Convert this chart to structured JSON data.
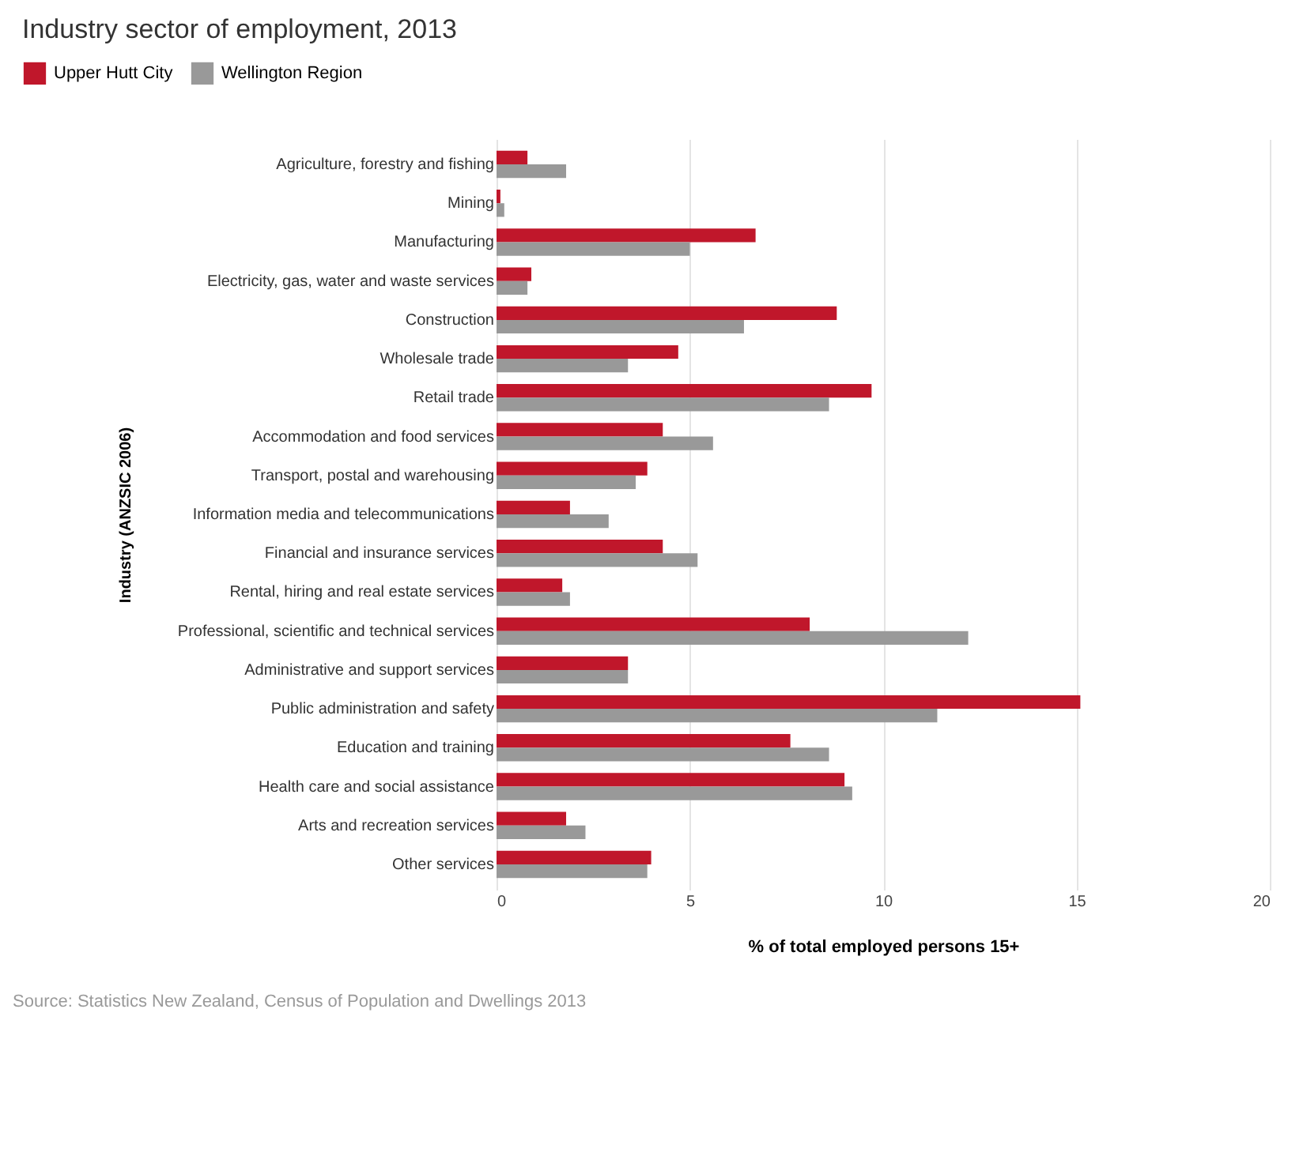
{
  "chart_data": {
    "type": "bar",
    "orientation": "horizontal",
    "title": "Industry sector of employment, 2013",
    "xlabel": "% of total employed persons 15+",
    "ylabel": "Industry (ANZSIC 2006)",
    "categories": [
      "Agriculture, forestry and fishing",
      "Mining",
      "Manufacturing",
      "Electricity, gas, water and waste services",
      "Construction",
      "Wholesale trade",
      "Retail trade",
      "Accommodation and food services",
      "Transport, postal and warehousing",
      "Information media and telecommunications",
      "Financial and insurance services",
      "Rental, hiring and real estate services",
      "Professional, scientific and technical services",
      "Administrative and support services",
      "Public administration and safety",
      "Education and training",
      "Health care and social assistance",
      "Arts and recreation services",
      "Other services"
    ],
    "series": [
      {
        "name": "Upper Hutt City",
        "color": "#c0172b",
        "values": [
          0.8,
          0.1,
          6.7,
          0.9,
          8.8,
          4.7,
          9.7,
          4.3,
          3.9,
          1.9,
          4.3,
          1.7,
          8.1,
          3.4,
          15.1,
          7.6,
          9.0,
          1.8,
          4.0
        ]
      },
      {
        "name": "Wellington Region",
        "color": "#999999",
        "values": [
          1.8,
          0.2,
          5.0,
          0.8,
          6.4,
          3.4,
          8.6,
          5.6,
          3.6,
          2.9,
          5.2,
          1.9,
          12.2,
          3.4,
          11.4,
          8.6,
          9.2,
          2.3,
          3.9
        ]
      }
    ],
    "xlim": [
      0,
      20
    ],
    "xticks": [
      0,
      5,
      10,
      15,
      20
    ],
    "grid": "x",
    "legend": "top left",
    "annotations": [
      "Source: Statistics New Zealand, Census of Population and Dwellings 2013"
    ]
  }
}
